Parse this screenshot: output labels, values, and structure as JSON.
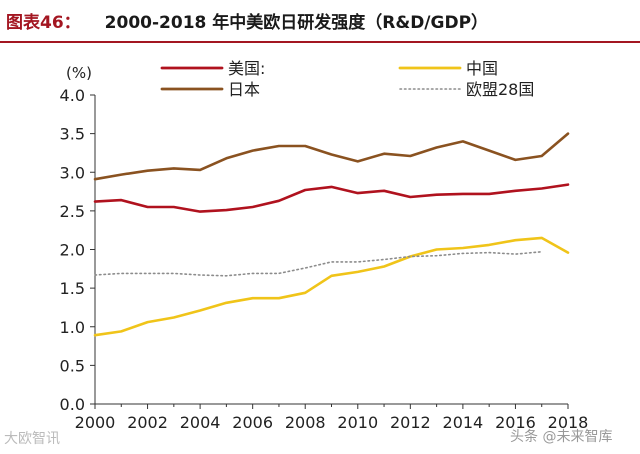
{
  "header": {
    "figure_label": "图表46：",
    "title": "2000-2018 年中美欧日研发强度（R&D/GDP）"
  },
  "watermarks": {
    "left": "大欧智讯",
    "right": "头条 @未来智库"
  },
  "chart_data": {
    "type": "line",
    "title": "2000-2018 年中美欧日研发强度（R&D/GDP）",
    "ylabel": "(%)",
    "xlabel": "",
    "ylim": [
      0,
      4.0
    ],
    "xlim": [
      2000,
      2018
    ],
    "yticks": [
      "0.0",
      "0.5",
      "1.0",
      "1.5",
      "2.0",
      "2.5",
      "3.0",
      "3.5",
      "4.0"
    ],
    "xticks": [
      "2000",
      "2002",
      "2004",
      "2006",
      "2008",
      "2010",
      "2012",
      "2014",
      "2016",
      "2018"
    ],
    "grid": false,
    "legend_position": "top",
    "x": [
      2000,
      2001,
      2002,
      2003,
      2004,
      2005,
      2006,
      2007,
      2008,
      2009,
      2010,
      2011,
      2012,
      2013,
      2014,
      2015,
      2016,
      2017,
      2018
    ],
    "series": [
      {
        "name": "美国:",
        "color": "#b0121e",
        "style": "solid",
        "values": [
          2.62,
          2.64,
          2.55,
          2.55,
          2.49,
          2.51,
          2.55,
          2.63,
          2.77,
          2.81,
          2.73,
          2.76,
          2.68,
          2.71,
          2.72,
          2.72,
          2.76,
          2.79,
          2.84
        ]
      },
      {
        "name": "中国",
        "color": "#f0c419",
        "style": "solid",
        "values": [
          0.89,
          0.94,
          1.06,
          1.12,
          1.21,
          1.31,
          1.37,
          1.37,
          1.44,
          1.66,
          1.71,
          1.78,
          1.91,
          2.0,
          2.02,
          2.06,
          2.12,
          2.15,
          1.96
        ]
      },
      {
        "name": "日本",
        "color": "#8a5220",
        "style": "solid",
        "values": [
          2.91,
          2.97,
          3.02,
          3.05,
          3.03,
          3.18,
          3.28,
          3.34,
          3.34,
          3.23,
          3.14,
          3.24,
          3.21,
          3.32,
          3.4,
          3.28,
          3.16,
          3.21,
          3.5
        ]
      },
      {
        "name": "欧盟28国",
        "color": "#8c8c8c",
        "style": "dotted",
        "values": [
          1.67,
          1.69,
          1.69,
          1.69,
          1.67,
          1.66,
          1.69,
          1.69,
          1.76,
          1.84,
          1.84,
          1.87,
          1.91,
          1.92,
          1.95,
          1.96,
          1.94,
          1.97,
          null
        ]
      }
    ]
  }
}
